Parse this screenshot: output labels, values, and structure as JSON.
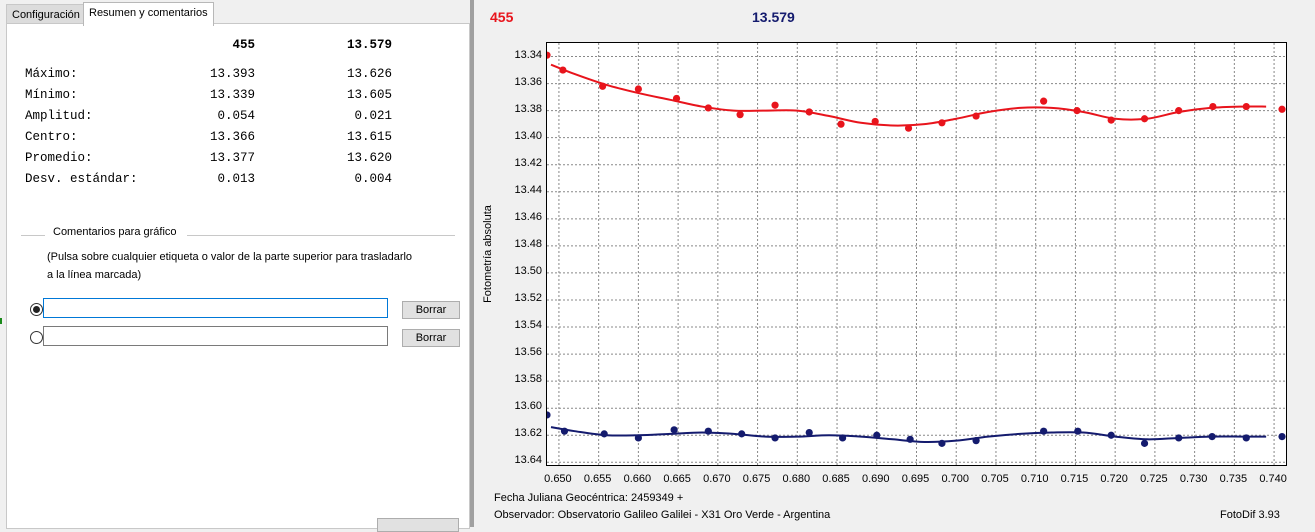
{
  "tabs": [
    {
      "label": "Configuración",
      "active": false
    },
    {
      "label": "Resumen y comentarios",
      "active": true
    }
  ],
  "summary": {
    "headers": [
      "455",
      "13.579"
    ],
    "rows": [
      {
        "label": "Máximo:",
        "v1": "13.393",
        "v2": "13.626"
      },
      {
        "label": "Mínimo:",
        "v1": "13.339",
        "v2": "13.605"
      },
      {
        "label": "Amplitud:",
        "v1": "0.054",
        "v2": "0.021"
      },
      {
        "label": "Centro:",
        "v1": "13.366",
        "v2": "13.615"
      },
      {
        "label": "Promedio:",
        "v1": "13.377",
        "v2": "13.620"
      },
      {
        "label": "Desv. estándar:",
        "v1": "0.013",
        "v2": "0.004"
      }
    ]
  },
  "comments": {
    "title": "Comentarios para gráfico",
    "hint_line1": "(Pulsa sobre cualquier etiqueta o valor de la parte superior para trasladarlo",
    "hint_line2": "a la línea marcada)",
    "lines": [
      {
        "value": "",
        "selected": true,
        "clear_label": "Borrar"
      },
      {
        "value": "",
        "selected": false,
        "clear_label": "Borrar"
      }
    ]
  },
  "chart_header": {
    "series1_name": "455",
    "series1_color": "#e8141c",
    "series2_name": "13.579",
    "series2_color": "#141b6e"
  },
  "footer": {
    "julian_date": "Fecha Juliana Geocéntrica: 2459349 +",
    "observer": "Observador: Observatorio Galileo Galilei - X31 Oro Verde - Argentina",
    "software": "FotoDif 3.93"
  },
  "chart_data": {
    "type": "scatter",
    "title": "",
    "xlabel": "",
    "ylabel": "Fotometría absoluta",
    "xlim": [
      0.6485,
      0.7415
    ],
    "ylim": [
      13.33,
      13.642
    ],
    "y_inverted": true,
    "grid": true,
    "x_ticks": [
      "0.650",
      "0.655",
      "0.660",
      "0.665",
      "0.670",
      "0.675",
      "0.680",
      "0.685",
      "0.690",
      "0.695",
      "0.700",
      "0.705",
      "0.710",
      "0.715",
      "0.720",
      "0.725",
      "0.730",
      "0.735",
      "0.740"
    ],
    "y_ticks": [
      "13.34",
      "13.36",
      "13.38",
      "13.40",
      "13.42",
      "13.44",
      "13.46",
      "13.48",
      "13.50",
      "13.52",
      "13.54",
      "13.56",
      "13.58",
      "13.60",
      "13.62",
      "13.64"
    ],
    "series": [
      {
        "name": "455",
        "color": "#e8141c",
        "x": [
          0.6485,
          0.6505,
          0.6555,
          0.66,
          0.6648,
          0.6688,
          0.6728,
          0.6772,
          0.6815,
          0.6855,
          0.6898,
          0.694,
          0.6982,
          0.7025,
          0.711,
          0.7152,
          0.7195,
          0.7237,
          0.728,
          0.7323,
          0.7365,
          0.741
        ],
        "y": [
          13.339,
          13.35,
          13.362,
          13.364,
          13.371,
          13.378,
          13.383,
          13.376,
          13.381,
          13.39,
          13.388,
          13.393,
          13.389,
          13.384,
          13.373,
          13.38,
          13.387,
          13.386,
          13.38,
          13.377,
          13.377,
          13.379
        ],
        "fit_x": [
          0.649,
          0.652,
          0.656,
          0.66,
          0.664,
          0.668,
          0.672,
          0.676,
          0.68,
          0.684,
          0.688,
          0.692,
          0.696,
          0.7,
          0.704,
          0.708,
          0.712,
          0.716,
          0.72,
          0.724,
          0.728,
          0.732,
          0.736,
          0.739
        ],
        "fit_y": [
          13.346,
          13.353,
          13.361,
          13.367,
          13.372,
          13.377,
          13.38,
          13.38,
          13.38,
          13.384,
          13.389,
          13.391,
          13.39,
          13.386,
          13.381,
          13.378,
          13.378,
          13.381,
          13.386,
          13.386,
          13.381,
          13.378,
          13.377,
          13.377
        ]
      },
      {
        "name": "13.579",
        "color": "#141b6e",
        "x": [
          0.6485,
          0.6507,
          0.6557,
          0.66,
          0.6645,
          0.6688,
          0.673,
          0.6772,
          0.6815,
          0.6857,
          0.69,
          0.6942,
          0.6982,
          0.7025,
          0.711,
          0.7153,
          0.7195,
          0.7237,
          0.728,
          0.7322,
          0.7365,
          0.741
        ],
        "y": [
          13.605,
          13.617,
          13.619,
          13.622,
          13.616,
          13.617,
          13.619,
          13.622,
          13.618,
          13.622,
          13.62,
          13.623,
          13.626,
          13.624,
          13.617,
          13.617,
          13.62,
          13.626,
          13.622,
          13.621,
          13.622,
          13.621
        ],
        "fit_x": [
          0.649,
          0.652,
          0.656,
          0.66,
          0.664,
          0.668,
          0.672,
          0.676,
          0.68,
          0.684,
          0.688,
          0.692,
          0.696,
          0.7,
          0.704,
          0.708,
          0.712,
          0.716,
          0.72,
          0.724,
          0.728,
          0.732,
          0.736,
          0.739
        ],
        "fit_y": [
          13.614,
          13.617,
          13.62,
          13.62,
          13.619,
          13.618,
          13.619,
          13.621,
          13.621,
          13.62,
          13.621,
          13.623,
          13.625,
          13.624,
          13.621,
          13.619,
          13.618,
          13.618,
          13.621,
          13.623,
          13.622,
          13.621,
          13.621,
          13.621
        ]
      }
    ]
  }
}
